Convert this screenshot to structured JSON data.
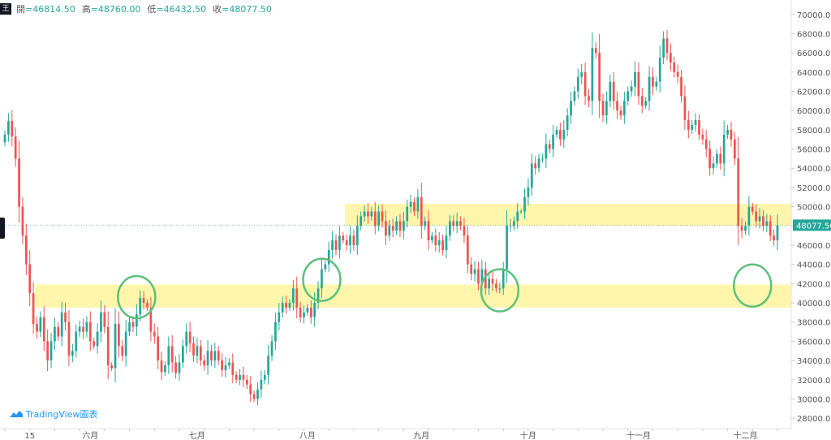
{
  "header": {
    "symbol_icon": "tradingview-symbol-icon",
    "open_label": "開",
    "open_value": "=46814.50",
    "high_label": "高",
    "high_value": "=48760.00",
    "low_label": "低",
    "low_value": "=46432.50",
    "close_label": "收",
    "close_value": "=48077.50"
  },
  "logo": {
    "text": "TradingView圖表"
  },
  "colors": {
    "up": "#26a69a",
    "down": "#ef5350",
    "zone": "#fff59d",
    "circle": "#5cc07a",
    "axis_text": "#555555"
  },
  "chart_data": {
    "type": "candlestick",
    "title": "",
    "xlabel": "",
    "ylabel": "",
    "ylim": [
      27000,
      71500
    ],
    "y_ticks": [
      28000,
      30000,
      32000,
      34000,
      36000,
      38000,
      40000,
      42000,
      44000,
      46000,
      48000,
      50000,
      52000,
      54000,
      56000,
      58000,
      60000,
      62000,
      64000,
      66000,
      68000,
      70000
    ],
    "y_tick_labels": [
      "28000.00",
      "30000.00",
      "32000.00",
      "34000.00",
      "36000.00",
      "38000.00",
      "40000.00",
      "42000.00",
      "44000.00",
      "46000.00",
      "48000.00",
      "50000.00",
      "52000.00",
      "54000.00",
      "56000.00",
      "58000.00",
      "60000.00",
      "62000.00",
      "64000.00",
      "66000.00",
      "68000.00",
      "70000.00"
    ],
    "x_tick_labels": [
      {
        "label": "15",
        "bar": 7
      },
      {
        "label": "六月",
        "bar": 24
      },
      {
        "label": "七月",
        "bar": 54
      },
      {
        "label": "八月",
        "bar": 85
      },
      {
        "label": "九月",
        "bar": 117
      },
      {
        "label": "十月",
        "bar": 147
      },
      {
        "label": "十一月",
        "bar": 178
      },
      {
        "label": "十二月",
        "bar": 208
      }
    ],
    "last_price": 48077.5,
    "last_price_label": "48077.50",
    "zones": [
      {
        "low": 39500,
        "high": 41900,
        "start_bar": 9,
        "end_bar": 228
      },
      {
        "low": 48000,
        "high": 50300,
        "start_bar": 96,
        "end_bar": 228
      }
    ],
    "circles": [
      {
        "bar": 37,
        "price": 40600
      },
      {
        "bar": 89,
        "price": 42400
      },
      {
        "bar": 139,
        "price": 41300
      },
      {
        "bar": 210,
        "price": 41800
      }
    ],
    "closes": [
      57500,
      58900,
      57300,
      55000,
      50000,
      47000,
      44000,
      41000,
      37800,
      37000,
      38500,
      36000,
      34000,
      36000,
      37500,
      36500,
      39000,
      38000,
      34500,
      35000,
      37000,
      37500,
      37000,
      38000,
      36000,
      35500,
      37000,
      39000,
      37500,
      33500,
      33200,
      37800,
      35500,
      34500,
      37000,
      38000,
      37500,
      38800,
      40500,
      40000,
      39500,
      37000,
      36500,
      34000,
      32800,
      33500,
      35500,
      33800,
      32700,
      33800,
      35500,
      37000,
      35800,
      34500,
      35500,
      34000,
      33500,
      35000,
      34000,
      35000,
      34000,
      33000,
      33500,
      33800,
      32500,
      32000,
      32500,
      32000,
      31500,
      30500,
      30000,
      31000,
      32000,
      32500,
      34500,
      36000,
      38000,
      39000,
      40000,
      39500,
      40000,
      41500,
      39500,
      38500,
      39000,
      39500,
      38500,
      40000,
      41500,
      43500,
      44000,
      45500,
      46500,
      45500,
      47000,
      46500,
      46000,
      47000,
      46000,
      48000,
      49000,
      49500,
      49000,
      49500,
      48000,
      49500,
      48500,
      47000,
      48000,
      47500,
      48500,
      47500,
      48500,
      50000,
      50500,
      49500,
      51000,
      48000,
      48500,
      46500,
      47000,
      46000,
      46500,
      45500,
      47000,
      48500,
      48000,
      48500,
      48000,
      47000,
      44000,
      43000,
      43500,
      42000,
      43500,
      41500,
      42500,
      42000,
      41500,
      41500,
      43500,
      48000,
      48000,
      48500,
      49500,
      49500,
      51000,
      52000,
      54500,
      54000,
      55000,
      55000,
      56500,
      56000,
      57500,
      58000,
      57000,
      58000,
      59500,
      61000,
      62000,
      63500,
      64000,
      61500,
      61000,
      66500,
      66000,
      61000,
      59500,
      61000,
      63000,
      61000,
      60000,
      59500,
      61000,
      62000,
      62500,
      64000,
      61500,
      60500,
      61000,
      63500,
      62500,
      63000,
      65500,
      67500,
      66000,
      65000,
      64000,
      63500,
      61500,
      59000,
      58000,
      58500,
      59000,
      57500,
      57000,
      56000,
      54000,
      54500,
      55500,
      54500,
      57500,
      58000,
      57000,
      55000,
      48000,
      47500,
      48000,
      50000,
      49500,
      48500,
      49000,
      48000,
      48500,
      47000,
      46500,
      48077
    ]
  }
}
